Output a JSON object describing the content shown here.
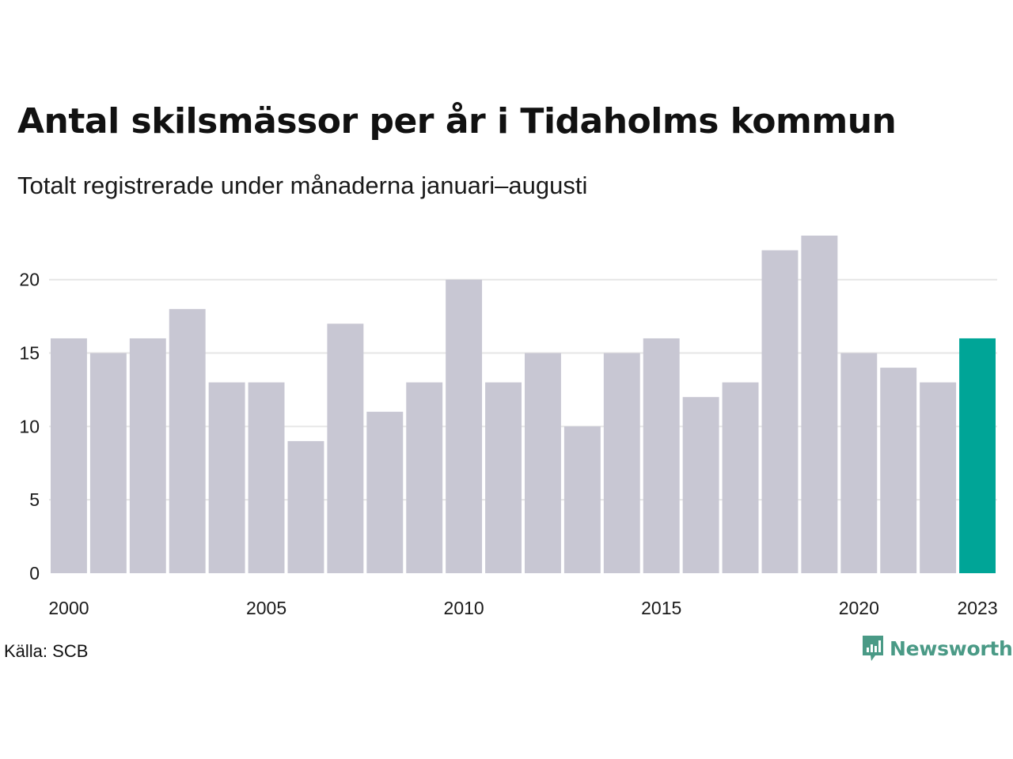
{
  "header": {
    "title": "Antal skilsmässor per år i Tidaholms kommun",
    "subtitle": "Totalt registrerade under månaderna januari–augusti"
  },
  "footer": {
    "source": "Källa: SCB",
    "brand": "Newsworthy",
    "brand_icon": "newsworthy-logo-icon"
  },
  "colors": {
    "bar": "#c8c7d3",
    "highlight": "#00a597",
    "grid": "#e6e6e6",
    "text": "#1a1a1a",
    "brand": "#4a9a86"
  },
  "chart_data": {
    "type": "bar",
    "x": [
      2000,
      2001,
      2002,
      2003,
      2004,
      2005,
      2006,
      2007,
      2008,
      2009,
      2010,
      2011,
      2012,
      2013,
      2014,
      2015,
      2016,
      2017,
      2018,
      2019,
      2020,
      2021,
      2022,
      2023
    ],
    "values": [
      16,
      15,
      16,
      18,
      13,
      13,
      9,
      17,
      11,
      13,
      20,
      13,
      15,
      10,
      15,
      16,
      12,
      13,
      22,
      23,
      15,
      14,
      13,
      16
    ],
    "highlight": 2023,
    "x_tick_labels": [
      "2000",
      "2005",
      "2010",
      "2015",
      "2020",
      "2023"
    ],
    "y_ticks": [
      0,
      5,
      10,
      15,
      20
    ],
    "ylim": [
      0,
      23
    ],
    "grid": true,
    "legend": "none"
  }
}
